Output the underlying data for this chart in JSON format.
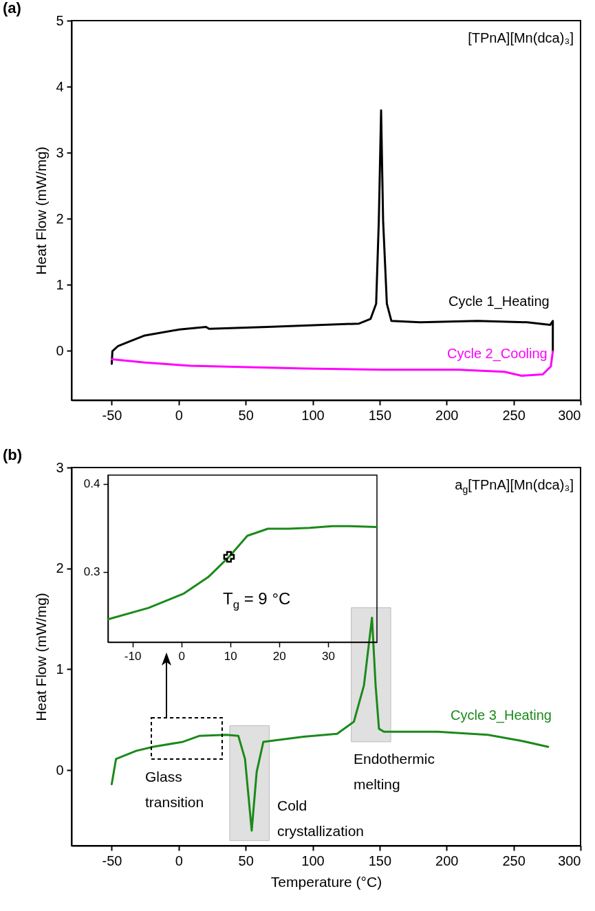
{
  "chart_data": [
    {
      "type": "line",
      "title": "(a)",
      "ylabel": "Heat Flow (mW/mg)",
      "xlim": [
        -80,
        300
      ],
      "ylim": [
        -0.75,
        5
      ],
      "xticks": [
        -50,
        0,
        50,
        100,
        150,
        200,
        250,
        300
      ],
      "yticks": [
        0,
        1,
        2,
        3,
        4,
        5
      ],
      "annotations": [
        "[TPnA][Mn(dca)₃]"
      ],
      "series": [
        {
          "name": "Cycle 1_Heating",
          "color": "#000000",
          "x": [
            -50,
            -49.5,
            -45.3,
            -36.7,
            -25.3,
            0.4,
            20.4,
            22.7,
            66.1,
            134.6,
            143.2,
            147.4,
            149.4,
            151.1,
            152.6,
            155.4,
            158.8,
            180.3,
            223.1,
            260.2,
            277.3,
            279.3,
            279.3
          ],
          "values": [
            -0.2,
            -0.01,
            0.07,
            0.14,
            0.23,
            0.32,
            0.36,
            0.33,
            0.36,
            0.41,
            0.48,
            0.71,
            1.97,
            3.64,
            1.97,
            0.71,
            0.45,
            0.43,
            0.45,
            0.43,
            0.39,
            0.45,
            -0.01
          ]
        },
        {
          "name": "Cycle 2_Cooling",
          "color": "#ff00ff",
          "x": [
            279.3,
            277.8,
            271.7,
            256,
            243.2,
            209,
            151.8,
            94.6,
            9,
            -25.3,
            -50
          ],
          "values": [
            -0.01,
            -0.24,
            -0.36,
            -0.38,
            -0.32,
            -0.29,
            -0.29,
            -0.27,
            -0.23,
            -0.18,
            -0.13
          ]
        }
      ]
    },
    {
      "type": "line",
      "title": "(b)",
      "xlabel": "Temperature (°C)",
      "ylabel": "Heat Flow (mW/mg)",
      "xlim": [
        -80,
        300
      ],
      "ylim": [
        -0.75,
        3
      ],
      "xticks": [
        -50,
        0,
        50,
        100,
        150,
        200,
        250,
        300
      ],
      "yticks": [
        0,
        1,
        2,
        3
      ],
      "bands": [
        {
          "axis": "x",
          "from": 38.1,
          "to": 67.6,
          "color": "#d9d9d9"
        },
        {
          "axis": "x",
          "from": 128.8,
          "to": 158.3,
          "color": "#d9d9d9"
        }
      ],
      "annotations": [
        "a$_{g}$[TPnA][Mn(dca)₃]",
        "Glass\ntransition",
        "Cold\ncrystallization",
        "Endothermic\nmelting"
      ],
      "series": [
        {
          "name": "Cycle 3_Heating",
          "color": "#1a8a1a",
          "x": [
            -50,
            -46.8,
            -31.8,
            -19.3,
            3.2,
            15.7,
            35.7,
            44.5,
            49.5,
            54.5,
            58.2,
            63.2,
            93.2,
            118.3,
            130.8,
            138.3,
            144.3,
            147,
            149.5,
            153.2,
            193.3,
            230.8,
            255.8,
            275.8
          ],
          "values": [
            -0.14,
            0.11,
            0.19,
            0.23,
            0.28,
            0.34,
            0.35,
            0.34,
            0.11,
            -0.6,
            -0.02,
            0.28,
            0.33,
            0.36,
            0.48,
            0.84,
            1.51,
            0.84,
            0.41,
            0.38,
            0.38,
            0.35,
            0.29,
            0.23
          ]
        }
      ]
    },
    {
      "type": "line",
      "xlim": [
        -15,
        40
      ],
      "ylim": [
        0.22,
        0.41
      ],
      "xticks": [
        -10,
        0,
        10,
        20,
        30
      ],
      "yticks": [
        0.3,
        0.4
      ],
      "annotations": [
        "T$_{g}$ = 9 °C"
      ],
      "series": [
        {
          "color": "#1a8a1a",
          "x": [
            -15,
            -6.7,
            0.4,
            5.5,
            9.75,
            13.5,
            17.7,
            21.9,
            26.2,
            30.9,
            34.1,
            40
          ],
          "values": [
            0.246,
            0.259,
            0.275,
            0.294,
            0.317,
            0.341,
            0.349,
            0.349,
            0.35,
            0.352,
            0.352,
            0.351
          ]
        },
        {
          "type": "scatter",
          "marker": "cross",
          "color": "#000000",
          "x": [
            9.75
          ],
          "values": [
            0.317
          ]
        }
      ]
    }
  ]
}
